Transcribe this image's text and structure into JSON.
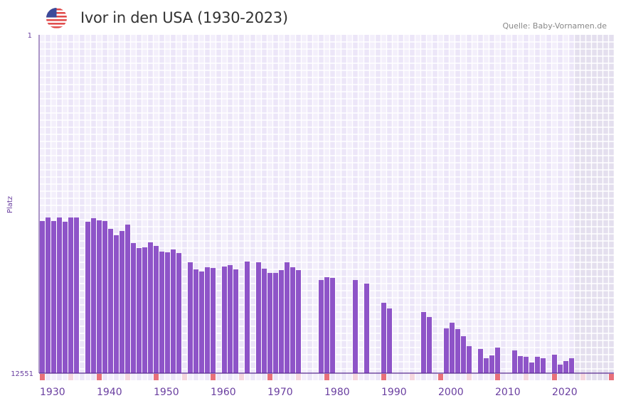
{
  "header": {
    "title": "Ivor in den USA (1930-2023)",
    "source": "Quelle: Baby-Vornamen.de",
    "flag_icon": "usa-flag-icon"
  },
  "colors": {
    "bar": "#8e54c8",
    "grid_bg_a": "#f3effb",
    "grid_bg_b": "#ece6f8",
    "future_bg": "#e4dfee",
    "decade_marker": "#e8707a",
    "halfdecade_marker": "#f5d6de",
    "axis": "#5a2d91",
    "label": "#6a3fa0"
  },
  "chart_data": {
    "type": "bar",
    "title": "Ivor in den USA (1930-2023)",
    "ylabel": "Platz",
    "xlabel": "",
    "ylim": [
      1,
      12551
    ],
    "y_inverted": true,
    "y_ticks": [
      "1",
      "12551"
    ],
    "x_range": [
      1930,
      2030
    ],
    "x_ticks": [
      "1930",
      "1940",
      "1950",
      "1960",
      "1970",
      "1980",
      "1990",
      "2000",
      "2010",
      "2020"
    ],
    "grid": true,
    "future_shaded_from": 2024,
    "years": [
      1930,
      1931,
      1932,
      1933,
      1934,
      1935,
      1936,
      1937,
      1938,
      1939,
      1940,
      1941,
      1942,
      1943,
      1944,
      1945,
      1946,
      1947,
      1948,
      1949,
      1950,
      1951,
      1952,
      1953,
      1954,
      1955,
      1956,
      1957,
      1958,
      1959,
      1960,
      1961,
      1962,
      1963,
      1964,
      1965,
      1966,
      1967,
      1968,
      1969,
      1970,
      1971,
      1972,
      1973,
      1974,
      1975,
      1976,
      1977,
      1978,
      1979,
      1980,
      1981,
      1982,
      1983,
      1984,
      1985,
      1986,
      1987,
      1988,
      1989,
      1990,
      1991,
      1992,
      1993,
      1994,
      1995,
      1996,
      1997,
      1998,
      1999,
      2000,
      2001,
      2002,
      2003,
      2004,
      2005,
      2006,
      2007,
      2008,
      2009,
      2010,
      2011,
      2012,
      2013,
      2014,
      2015,
      2016,
      2017,
      2018,
      2019,
      2020,
      2021,
      2022,
      2023
    ],
    "values": [
      6909,
      6777,
      6909,
      6777,
      6935,
      6777,
      6777,
      null,
      6935,
      6803,
      6883,
      6909,
      7199,
      7436,
      7278,
      7041,
      7726,
      7911,
      7885,
      7700,
      7832,
      8043,
      8069,
      7964,
      8096,
      null,
      8439,
      8702,
      8781,
      8623,
      8650,
      null,
      8597,
      8544,
      8702,
      null,
      8412,
      null,
      8439,
      8676,
      8834,
      8834,
      8729,
      8439,
      8623,
      8729,
      null,
      null,
      null,
      9097,
      8992,
      9018,
      null,
      null,
      null,
      9097,
      null,
      9229,
      null,
      null,
      9941,
      10152,
      null,
      null,
      null,
      null,
      null,
      10284,
      10469,
      null,
      null,
      10891,
      10680,
      10917,
      11181,
      11550,
      null,
      11655,
      11998,
      11893,
      11603,
      null,
      null,
      11708,
      11919,
      11945,
      12156,
      11945,
      11998,
      null,
      11866,
      12235,
      12103,
      11998
    ]
  }
}
